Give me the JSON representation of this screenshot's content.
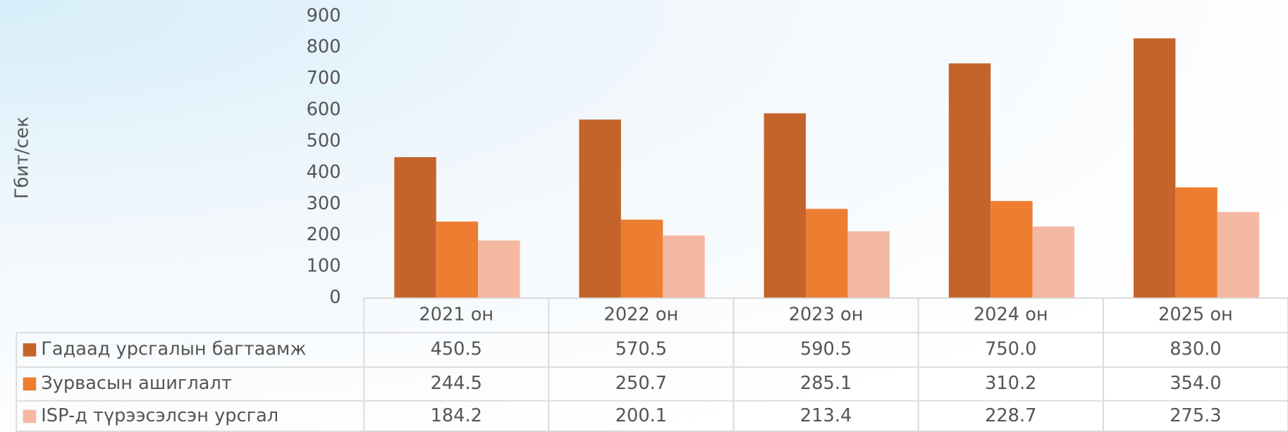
{
  "chart_data": {
    "type": "bar",
    "y_label": "Гбит/сек",
    "categories": [
      "2021 он",
      "2022 он",
      "2023 он",
      "2024 он",
      "2025 он"
    ],
    "series": [
      {
        "name": "Гадаад урсгалын багтаамж",
        "color": "#c5642a",
        "values": [
          450.5,
          570.5,
          590.5,
          750.0,
          830.0
        ],
        "value_labels": [
          "450.5",
          "570.5",
          "590.5",
          "750.0",
          "830.0"
        ]
      },
      {
        "name": "Зурвасын ашиглалт",
        "color": "#ed7d31",
        "values": [
          244.5,
          250.7,
          285.1,
          310.2,
          354.0
        ],
        "value_labels": [
          "244.5",
          "250.7",
          "285.1",
          "310.2",
          "354.0"
        ]
      },
      {
        "name": "ISP-д түрээсэлсэн урсгал",
        "color": "#f5b8a2",
        "values": [
          184.2,
          200.1,
          213.4,
          228.7,
          275.3
        ],
        "value_labels": [
          "184.2",
          "200.1",
          "213.4",
          "228.7",
          "275.3"
        ]
      }
    ],
    "ylim": [
      0,
      900
    ],
    "yticks": [
      0,
      100,
      200,
      300,
      400,
      500,
      600,
      700,
      800,
      900
    ]
  }
}
